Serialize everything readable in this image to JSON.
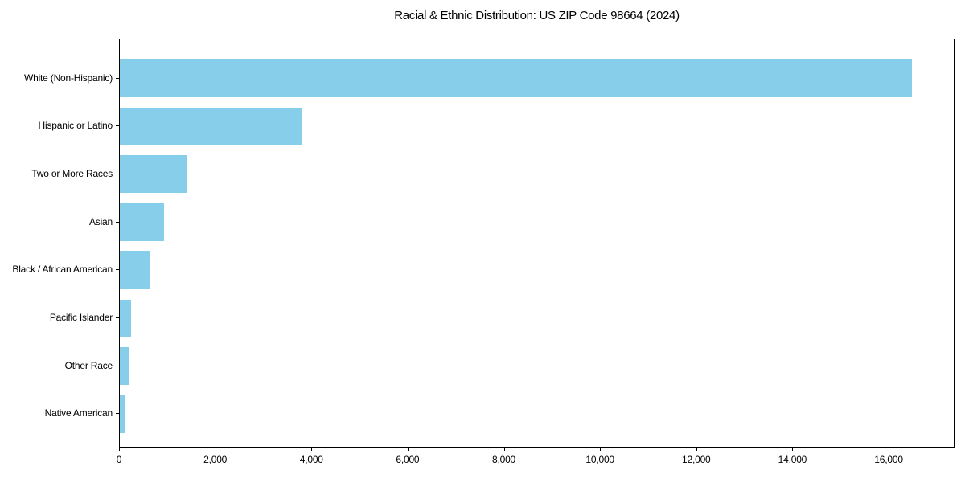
{
  "chart_data": {
    "type": "bar",
    "orientation": "horizontal",
    "title": "Racial & Ethnic Distribution: US ZIP Code 98664 (2024)",
    "xlabel": "",
    "ylabel": "",
    "categories": [
      "White (Non-Hispanic)",
      "Hispanic or Latino",
      "Two or More Races",
      "Asian",
      "Black / African American",
      "Pacific Islander",
      "Other Race",
      "Native American"
    ],
    "values": [
      16500,
      3800,
      1400,
      920,
      620,
      240,
      200,
      120
    ],
    "xlim": [
      0,
      17370
    ],
    "xticks": [
      0,
      2000,
      4000,
      6000,
      8000,
      10000,
      12000,
      14000,
      16000
    ],
    "grid": false,
    "legend": "none",
    "colors": {
      "bar": "#87CEEB",
      "axis": "#000000",
      "text": "#000000",
      "background": "#ffffff"
    }
  }
}
